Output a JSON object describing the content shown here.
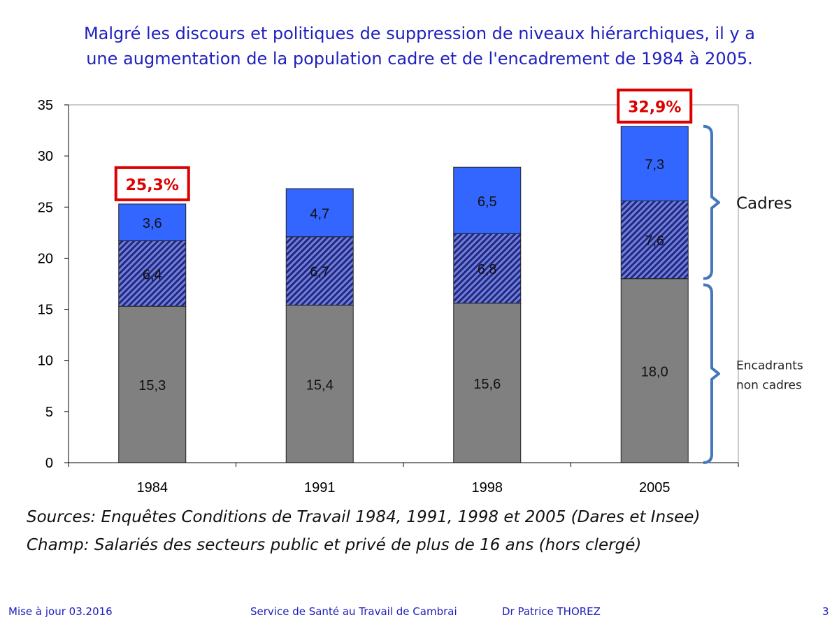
{
  "slide": {
    "title_lines": [
      "Malgré les discours et politiques de suppression de niveaux hiérarchiques, il y a",
      "une augmentation de la population cadre et de l'encadrement de 1984 à 2005."
    ],
    "sources_lines": [
      "Sources: Enquêtes Conditions de Travail 1984, 1991, 1998 et 2005 (Dares et Insee)",
      "Champ: Salariés des secteurs public et privé de plus de 16 ans (hors clergé)"
    ],
    "footer": {
      "left": "Mise à jour 03.2016",
      "center": "Service de Santé au Travail de Cambrai",
      "author": "Dr Patrice THOREZ",
      "page": "3"
    }
  },
  "chart_data": {
    "type": "bar",
    "stacked": true,
    "categories": [
      "1984",
      "1991",
      "1998",
      "2005"
    ],
    "series": [
      {
        "values": [
          15.3,
          15.4,
          15.6,
          18.0
        ],
        "labels": [
          "15,3",
          "15,4",
          "15,6",
          "18,0"
        ],
        "color": "#808080",
        "pattern": "solid"
      },
      {
        "values": [
          6.4,
          6.7,
          6.8,
          7.6
        ],
        "labels": [
          "6,4",
          "6,7",
          "6,8",
          "7,6"
        ],
        "color": "#3333aa",
        "pattern": "diagonal-hatch"
      },
      {
        "values": [
          3.6,
          4.7,
          6.5,
          7.3
        ],
        "labels": [
          "3,6",
          "4,7",
          "6,5",
          "7,3"
        ],
        "color": "#3366ff",
        "pattern": "solid"
      }
    ],
    "ylim": [
      0,
      35
    ],
    "yticks": [
      0,
      5,
      10,
      15,
      20,
      25,
      30,
      35
    ],
    "grid": false,
    "callouts": [
      {
        "category": "1984",
        "text": "25,3%",
        "color": "#dd0000"
      },
      {
        "category": "2005",
        "text": "32,9%",
        "color": "#dd0000"
      }
    ],
    "brackets": [
      {
        "text": "Cadres",
        "from": 18.0,
        "to": 32.9,
        "color": "#4477bb"
      },
      {
        "text_lines": [
          "Encadrants",
          "non cadres"
        ],
        "from": 0,
        "to": 17.4,
        "color": "#4477bb"
      }
    ]
  }
}
